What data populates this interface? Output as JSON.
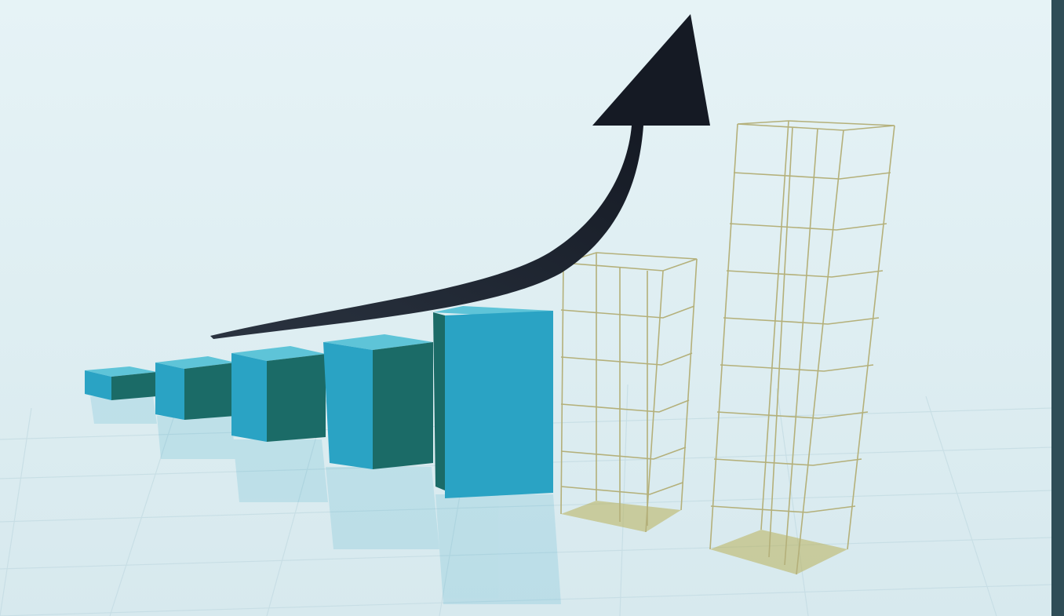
{
  "image": {
    "subject": "growth-bar-chart-illustration"
  },
  "palette": {
    "background": "#e3f1f5",
    "floor": "#dcebf0",
    "bar_front": "#2aa3c4",
    "bar_side": "#1b6b67",
    "bar_top": "#5ec4d8",
    "wire": "#b4b07a",
    "wire_base": "#b9b05a",
    "arrow": "#1d2330",
    "right_edge": "#2f4d57"
  },
  "growth": {
    "solid_bar_count": 5,
    "wire_bar_count": 2,
    "trend": "rising"
  }
}
